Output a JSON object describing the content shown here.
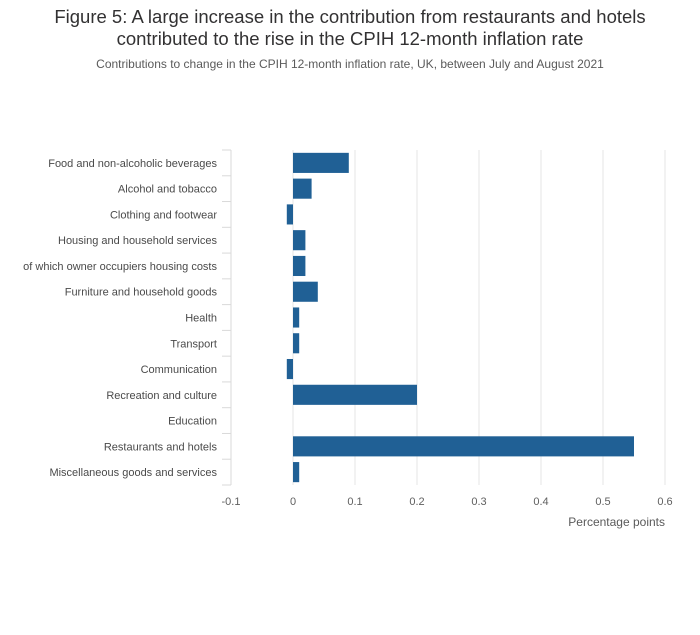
{
  "chart_data": {
    "type": "bar",
    "orientation": "horizontal",
    "title": "Figure 5: A large increase in the contribution from restaurants and hotels contributed to the rise in the CPIH 12-month inflation rate",
    "title_lines": [
      "Figure 5: A large increase in the contribution from restaurants and hotels",
      "contributed to the rise in the CPIH 12-month inflation rate"
    ],
    "subtitle": "Contributions to change in the CPIH 12-month inflation rate, UK, between July and August 2021",
    "xlabel": "Percentage points",
    "ylabel": "",
    "categories": [
      "Food and non-alcoholic beverages",
      "Alcohol and tobacco",
      "Clothing and footwear",
      "Housing and household services",
      "of which owner occupiers housing costs",
      "Furniture and household goods",
      "Health",
      "Transport",
      "Communication",
      "Recreation and culture",
      "Education",
      "Restaurants and hotels",
      "Miscellaneous goods and services"
    ],
    "values": [
      0.09,
      0.03,
      -0.01,
      0.02,
      0.02,
      0.04,
      0.01,
      0.01,
      -0.01,
      0.2,
      0,
      0.55,
      0.01
    ],
    "xlim": [
      -0.1,
      0.6
    ],
    "xticks": [
      -0.1,
      0,
      0.1,
      0.2,
      0.3,
      0.4,
      0.5,
      0.6
    ],
    "xtick_labels": [
      "-0.1",
      "0",
      "0.1",
      "0.2",
      "0.3",
      "0.4",
      "0.5",
      "0.6"
    ],
    "grid": true,
    "bar_color": "#206095",
    "grid_color": "#e6e6e6"
  }
}
